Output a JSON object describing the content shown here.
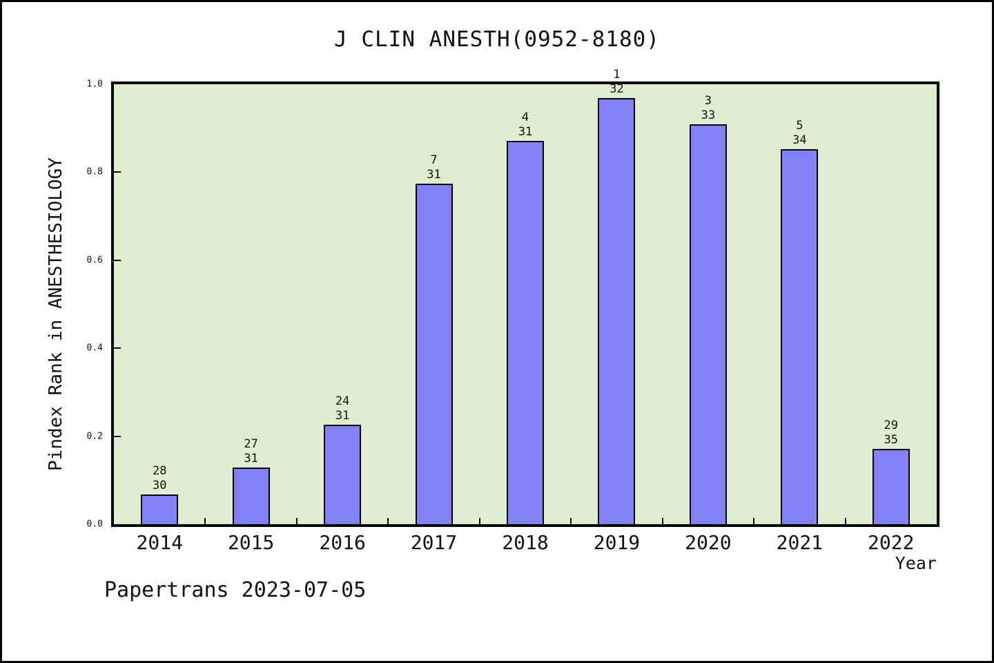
{
  "figure": {
    "footer": "Papertrans 2023-07-05"
  },
  "chart_data": {
    "type": "bar",
    "title": "J CLIN ANESTH(0952-8180)",
    "xlabel": "Year",
    "ylabel": "Pindex Rank in ANESTHESIOLOGY",
    "categories": [
      "2014",
      "2015",
      "2016",
      "2017",
      "2018",
      "2019",
      "2020",
      "2021",
      "2022"
    ],
    "values": [
      0.067,
      0.129,
      0.226,
      0.774,
      0.871,
      0.969,
      0.909,
      0.853,
      0.171
    ],
    "annotations": [
      {
        "rank": "28",
        "total": "30"
      },
      {
        "rank": "27",
        "total": "31"
      },
      {
        "rank": "24",
        "total": "31"
      },
      {
        "rank": "7",
        "total": "31"
      },
      {
        "rank": "4",
        "total": "31"
      },
      {
        "rank": "1",
        "total": "32"
      },
      {
        "rank": "3",
        "total": "33"
      },
      {
        "rank": "5",
        "total": "34"
      },
      {
        "rank": "29",
        "total": "35"
      }
    ],
    "ylim": [
      0.0,
      1.0
    ],
    "ytick_labels": [
      "0.0",
      "0.2",
      "0.4",
      "0.6",
      "0.8",
      "1.0"
    ],
    "inner_ytick_values": [
      0.2,
      0.4,
      0.6,
      0.8
    ],
    "grid": false,
    "legend_position": "none",
    "colors": {
      "bar_fill": "#8281f7",
      "bar_border": "#000000",
      "plot_background": "#dfeed1",
      "page_background": "#ffffff",
      "frame": "#000000"
    }
  }
}
